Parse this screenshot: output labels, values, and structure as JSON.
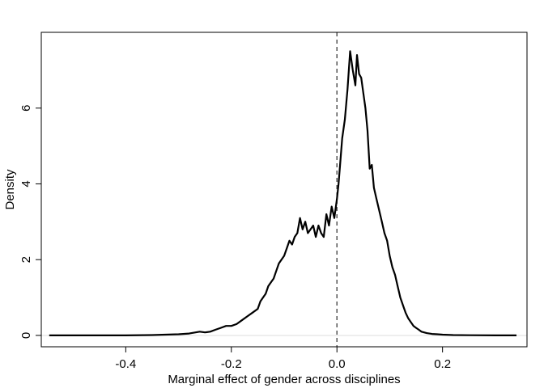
{
  "chart_data": {
    "type": "line",
    "title": "",
    "xlabel": "Marginal effect of gender across disciplines",
    "ylabel": "Density",
    "xlim": [
      -0.56,
      0.36
    ],
    "ylim": [
      -0.3,
      8.0
    ],
    "x_ticks": [
      -0.4,
      -0.2,
      0.0,
      0.2
    ],
    "x_tick_labels": [
      "-0.4",
      "-0.2",
      "0.0",
      "0.2"
    ],
    "y_ticks": [
      0,
      2,
      4,
      6
    ],
    "y_tick_labels": [
      "0",
      "2",
      "4",
      "6"
    ],
    "grid": false,
    "legend": "none",
    "reference_line": {
      "x": 0.0,
      "style": "dashed",
      "color": "#555555"
    },
    "zero_baseline_color": "#dddddd",
    "series": [
      {
        "color": "#000000",
        "x": [
          -0.545,
          -0.5,
          -0.45,
          -0.4,
          -0.35,
          -0.3,
          -0.28,
          -0.26,
          -0.25,
          -0.24,
          -0.23,
          -0.22,
          -0.21,
          -0.2,
          -0.19,
          -0.18,
          -0.17,
          -0.16,
          -0.15,
          -0.145,
          -0.14,
          -0.135,
          -0.13,
          -0.125,
          -0.12,
          -0.115,
          -0.11,
          -0.105,
          -0.1,
          -0.095,
          -0.09,
          -0.085,
          -0.08,
          -0.075,
          -0.07,
          -0.065,
          -0.06,
          -0.055,
          -0.05,
          -0.045,
          -0.04,
          -0.035,
          -0.03,
          -0.025,
          -0.02,
          -0.015,
          -0.01,
          -0.005,
          0.0,
          0.003,
          0.006,
          0.01,
          0.015,
          0.02,
          0.025,
          0.03,
          0.035,
          0.038,
          0.042,
          0.046,
          0.05,
          0.054,
          0.058,
          0.062,
          0.066,
          0.07,
          0.075,
          0.08,
          0.085,
          0.09,
          0.095,
          0.1,
          0.105,
          0.11,
          0.115,
          0.12,
          0.125,
          0.13,
          0.135,
          0.14,
          0.145,
          0.15,
          0.155,
          0.16,
          0.17,
          0.18,
          0.19,
          0.2,
          0.22,
          0.25,
          0.3,
          0.34
        ],
        "y": [
          0.0,
          0.0,
          0.0,
          0.0,
          0.01,
          0.03,
          0.05,
          0.1,
          0.08,
          0.1,
          0.15,
          0.2,
          0.25,
          0.25,
          0.3,
          0.4,
          0.5,
          0.6,
          0.7,
          0.9,
          1.0,
          1.1,
          1.3,
          1.4,
          1.5,
          1.7,
          1.9,
          2.0,
          2.1,
          2.3,
          2.5,
          2.4,
          2.6,
          2.7,
          3.1,
          2.8,
          3.0,
          2.7,
          2.8,
          2.9,
          2.6,
          2.9,
          2.7,
          2.6,
          3.2,
          2.9,
          3.4,
          3.1,
          3.6,
          4.0,
          4.5,
          5.2,
          5.7,
          6.5,
          7.5,
          7.0,
          6.6,
          7.4,
          6.9,
          6.8,
          6.4,
          6.0,
          5.4,
          4.4,
          4.5,
          3.9,
          3.6,
          3.3,
          3.0,
          2.7,
          2.5,
          2.1,
          1.8,
          1.6,
          1.3,
          1.0,
          0.8,
          0.6,
          0.45,
          0.35,
          0.25,
          0.2,
          0.15,
          0.1,
          0.06,
          0.04,
          0.03,
          0.02,
          0.01,
          0.005,
          0.0,
          0.0
        ]
      }
    ]
  }
}
